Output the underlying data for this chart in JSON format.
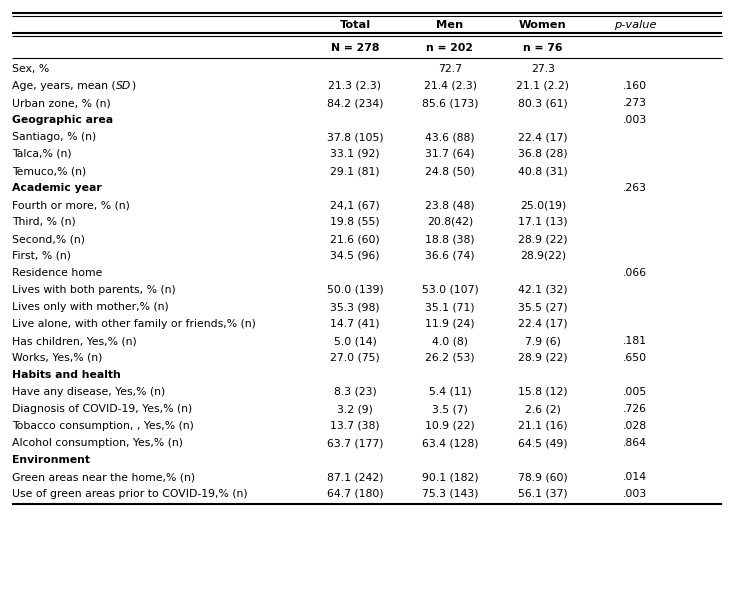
{
  "subheader": [
    "",
    "N = 278",
    "n = 202",
    "n = 76",
    ""
  ],
  "rows": [
    {
      "label": "Sex, %",
      "total": "",
      "men": "72.7",
      "women": "27.3",
      "pvalue": "",
      "bold": false
    },
    {
      "label": "Age, years, mean (SD)",
      "total": "21.3 (2.3)",
      "men": "21.4 (2.3)",
      "women": "21.1 (2.2)",
      "pvalue": ".160",
      "bold": false,
      "sd_italic": true
    },
    {
      "label": "Urban zone, % (n)",
      "total": "84.2 (234)",
      "men": "85.6 (173)",
      "women": "80.3 (61)",
      "pvalue": ".273",
      "bold": false
    },
    {
      "label": "Geographic area",
      "total": "",
      "men": "",
      "women": "",
      "pvalue": ".003",
      "bold": true
    },
    {
      "label": "Santiago, % (n)",
      "total": "37.8 (105)",
      "men": "43.6 (88)",
      "women": "22.4 (17)",
      "pvalue": "",
      "bold": false
    },
    {
      "label": "Talca,% (n)",
      "total": "33.1 (92)",
      "men": "31.7 (64)",
      "women": "36.8 (28)",
      "pvalue": "",
      "bold": false
    },
    {
      "label": "Temuco,% (n)",
      "total": "29.1 (81)",
      "men": "24.8 (50)",
      "women": "40.8 (31)",
      "pvalue": "",
      "bold": false
    },
    {
      "label": "Academic year",
      "total": "",
      "men": "",
      "women": "",
      "pvalue": ".263",
      "bold": true
    },
    {
      "label": "Fourth or more, % (n)",
      "total": "24,1 (67)",
      "men": "23.8 (48)",
      "women": "25.0(19)",
      "pvalue": "",
      "bold": false
    },
    {
      "label": "Third, % (n)",
      "total": "19.8 (55)",
      "men": "20.8(42)",
      "women": "17.1 (13)",
      "pvalue": "",
      "bold": false
    },
    {
      "label": "Second,% (n)",
      "total": "21.6 (60)",
      "men": "18.8 (38)",
      "women": "28.9 (22)",
      "pvalue": "",
      "bold": false
    },
    {
      "label": "First, % (n)",
      "total": "34.5 (96)",
      "men": "36.6 (74)",
      "women": "28.9(22)",
      "pvalue": "",
      "bold": false
    },
    {
      "label": "Residence home",
      "total": "",
      "men": "",
      "women": "",
      "pvalue": ".066",
      "bold": false
    },
    {
      "label": "Lives with both parents, % (n)",
      "total": "50.0 (139)",
      "men": "53.0 (107)",
      "women": "42.1 (32)",
      "pvalue": "",
      "bold": false
    },
    {
      "label": "Lives only with mother,% (n)",
      "total": "35.3 (98)",
      "men": "35.1 (71)",
      "women": "35.5 (27)",
      "pvalue": "",
      "bold": false
    },
    {
      "label": "Live alone, with other family or friends,% (n)",
      "total": "14.7 (41)",
      "men": "11.9 (24)",
      "women": "22.4 (17)",
      "pvalue": "",
      "bold": false
    },
    {
      "label": "Has children, Yes,% (n)",
      "total": "5.0 (14)",
      "men": "4.0 (8)",
      "women": "7.9 (6)",
      "pvalue": ".181",
      "bold": false
    },
    {
      "label": "Works, Yes,% (n)",
      "total": "27.0 (75)",
      "men": "26.2 (53)",
      "women": "28.9 (22)",
      "pvalue": ".650",
      "bold": false
    },
    {
      "label": "Habits and health",
      "total": "",
      "men": "",
      "women": "",
      "pvalue": "",
      "bold": true
    },
    {
      "label": "Have any disease, Yes,% (n)",
      "total": "8.3 (23)",
      "men": "5.4 (11)",
      "women": "15.8 (12)",
      "pvalue": ".005",
      "bold": false
    },
    {
      "label": "Diagnosis of COVID-19, Yes,% (n)",
      "total": "3.2 (9)",
      "men": "3.5 (7)",
      "women": "2.6 (2)",
      "pvalue": ".726",
      "bold": false
    },
    {
      "label": "Tobacco consumption, , Yes,% (n)",
      "total": "13.7 (38)",
      "men": "10.9 (22)",
      "women": "21.1 (16)",
      "pvalue": ".028",
      "bold": false
    },
    {
      "label": "Alcohol consumption, Yes,% (n)",
      "total": "63.7 (177)",
      "men": "63.4 (128)",
      "women": "64.5 (49)",
      "pvalue": ".864",
      "bold": false
    },
    {
      "label": "Environment",
      "total": "",
      "men": "",
      "women": "",
      "pvalue": "",
      "bold": true
    },
    {
      "label": "Green areas near the home,% (n)",
      "total": "87.1 (242)",
      "men": "90.1 (182)",
      "women": "78.9 (60)",
      "pvalue": ".014",
      "bold": false
    },
    {
      "label": "Use of green areas prior to COVID-19,% (n)",
      "total": "64.7 (180)",
      "men": "75.3 (143)",
      "women": "56.1 (37)",
      "pvalue": ".003",
      "bold": false
    }
  ],
  "bg_color": "#ffffff",
  "text_color": "#000000",
  "line_color": "#000000"
}
